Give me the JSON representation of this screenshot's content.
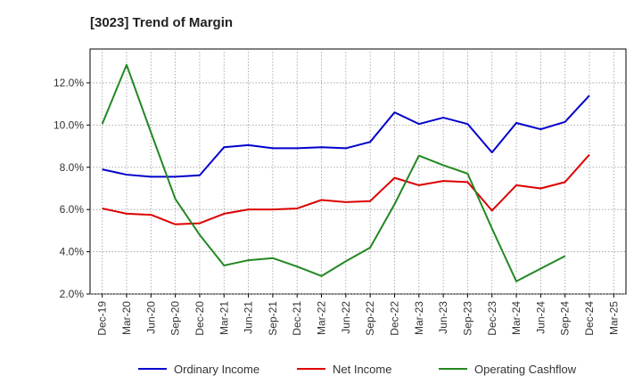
{
  "chart_data": {
    "type": "line",
    "title": "[3023]  Trend of Margin",
    "xlabel": "",
    "ylabel": "",
    "categories": [
      "Dec-19",
      "Mar-20",
      "Jun-20",
      "Sep-20",
      "Dec-20",
      "Mar-21",
      "Jun-21",
      "Sep-21",
      "Dec-21",
      "Mar-22",
      "Jun-22",
      "Sep-22",
      "Dec-22",
      "Mar-23",
      "Jun-23",
      "Sep-23",
      "Dec-23",
      "Mar-24",
      "Jun-24",
      "Sep-24",
      "Dec-24",
      "Mar-25"
    ],
    "yticks": [
      "2.0%",
      "4.0%",
      "6.0%",
      "8.0%",
      "10.0%",
      "12.0%"
    ],
    "ytick_values": [
      2,
      4,
      6,
      8,
      10,
      12
    ],
    "ylim": [
      2,
      13.6
    ],
    "grid": true,
    "legend_position": "bottom",
    "series": [
      {
        "name": "Ordinary Income",
        "color": "#0000cc",
        "values": [
          7.9,
          7.65,
          7.55,
          7.55,
          7.62,
          8.95,
          9.05,
          8.9,
          8.9,
          8.95,
          8.9,
          9.2,
          10.6,
          10.05,
          10.35,
          10.05,
          8.7,
          10.1,
          9.8,
          10.15,
          11.4,
          null
        ]
      },
      {
        "name": "Net Income",
        "color": "#dd0000",
        "values": [
          6.05,
          5.8,
          5.75,
          5.3,
          5.35,
          5.8,
          6.0,
          6.0,
          6.05,
          6.45,
          6.35,
          6.4,
          7.5,
          7.15,
          7.35,
          7.3,
          5.95,
          7.15,
          7.0,
          7.3,
          8.6,
          null
        ]
      },
      {
        "name": "Operating Cashflow",
        "color": "#228822",
        "values": [
          10.05,
          12.85,
          9.65,
          6.5,
          4.8,
          3.35,
          3.6,
          3.7,
          3.3,
          2.85,
          3.55,
          4.2,
          6.25,
          8.55,
          8.1,
          7.7,
          5.1,
          2.6,
          3.2,
          3.8,
          null,
          null
        ]
      }
    ]
  }
}
